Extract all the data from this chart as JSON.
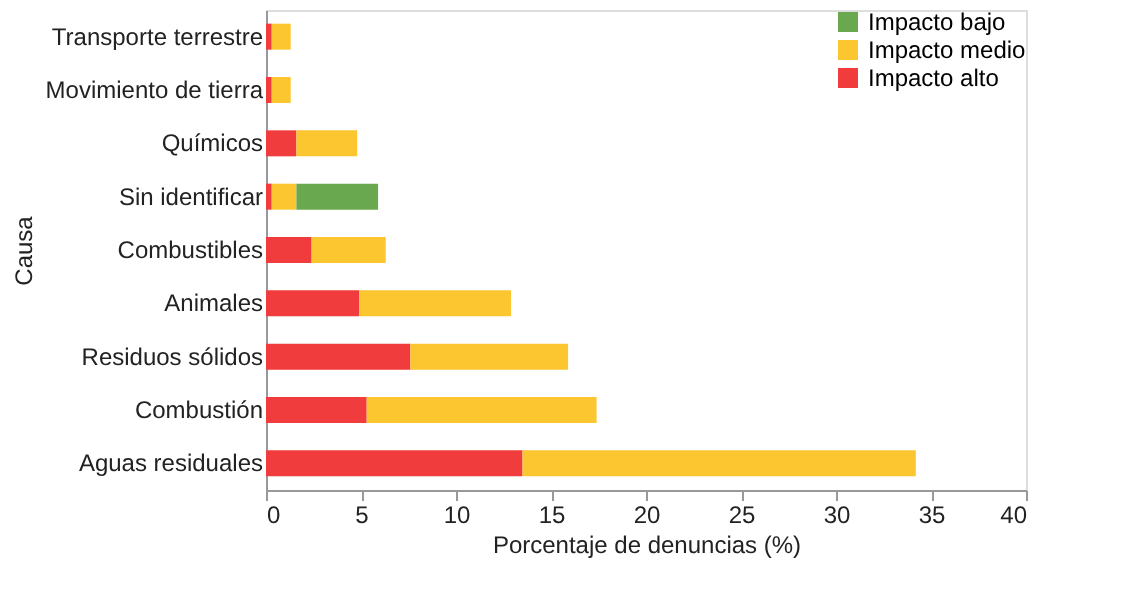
{
  "chart_data": {
    "type": "bar",
    "orientation": "horizontal",
    "stacked": true,
    "xlabel": "Porcentaje de denuncias (%)",
    "ylabel": "Causa",
    "categories": [
      "Transporte terrestre",
      "Movimiento de tierra",
      "Químicos",
      "Sin identificar",
      "Combustibles",
      "Animales",
      "Residuos sólidos",
      "Combustión",
      "Aguas residuales"
    ],
    "series": [
      {
        "name": "Impacto alto",
        "color": "#f03c3c",
        "values": [
          0.3,
          0.3,
          1.6,
          0.3,
          2.4,
          4.9,
          7.6,
          5.3,
          13.5
        ]
      },
      {
        "name": "Impacto medio",
        "color": "#fcc630",
        "values": [
          1.0,
          1.0,
          3.2,
          1.3,
          3.9,
          8.0,
          8.3,
          12.1,
          20.7
        ]
      },
      {
        "name": "Impacto bajo",
        "color": "#6aa84f",
        "values": [
          null,
          null,
          null,
          4.3,
          null,
          null,
          null,
          null,
          null
        ]
      }
    ],
    "xlim": [
      0,
      40
    ],
    "xticks": [
      0,
      5,
      10,
      15,
      20,
      25,
      30,
      35,
      40
    ],
    "grid": false,
    "legend": "top right"
  }
}
